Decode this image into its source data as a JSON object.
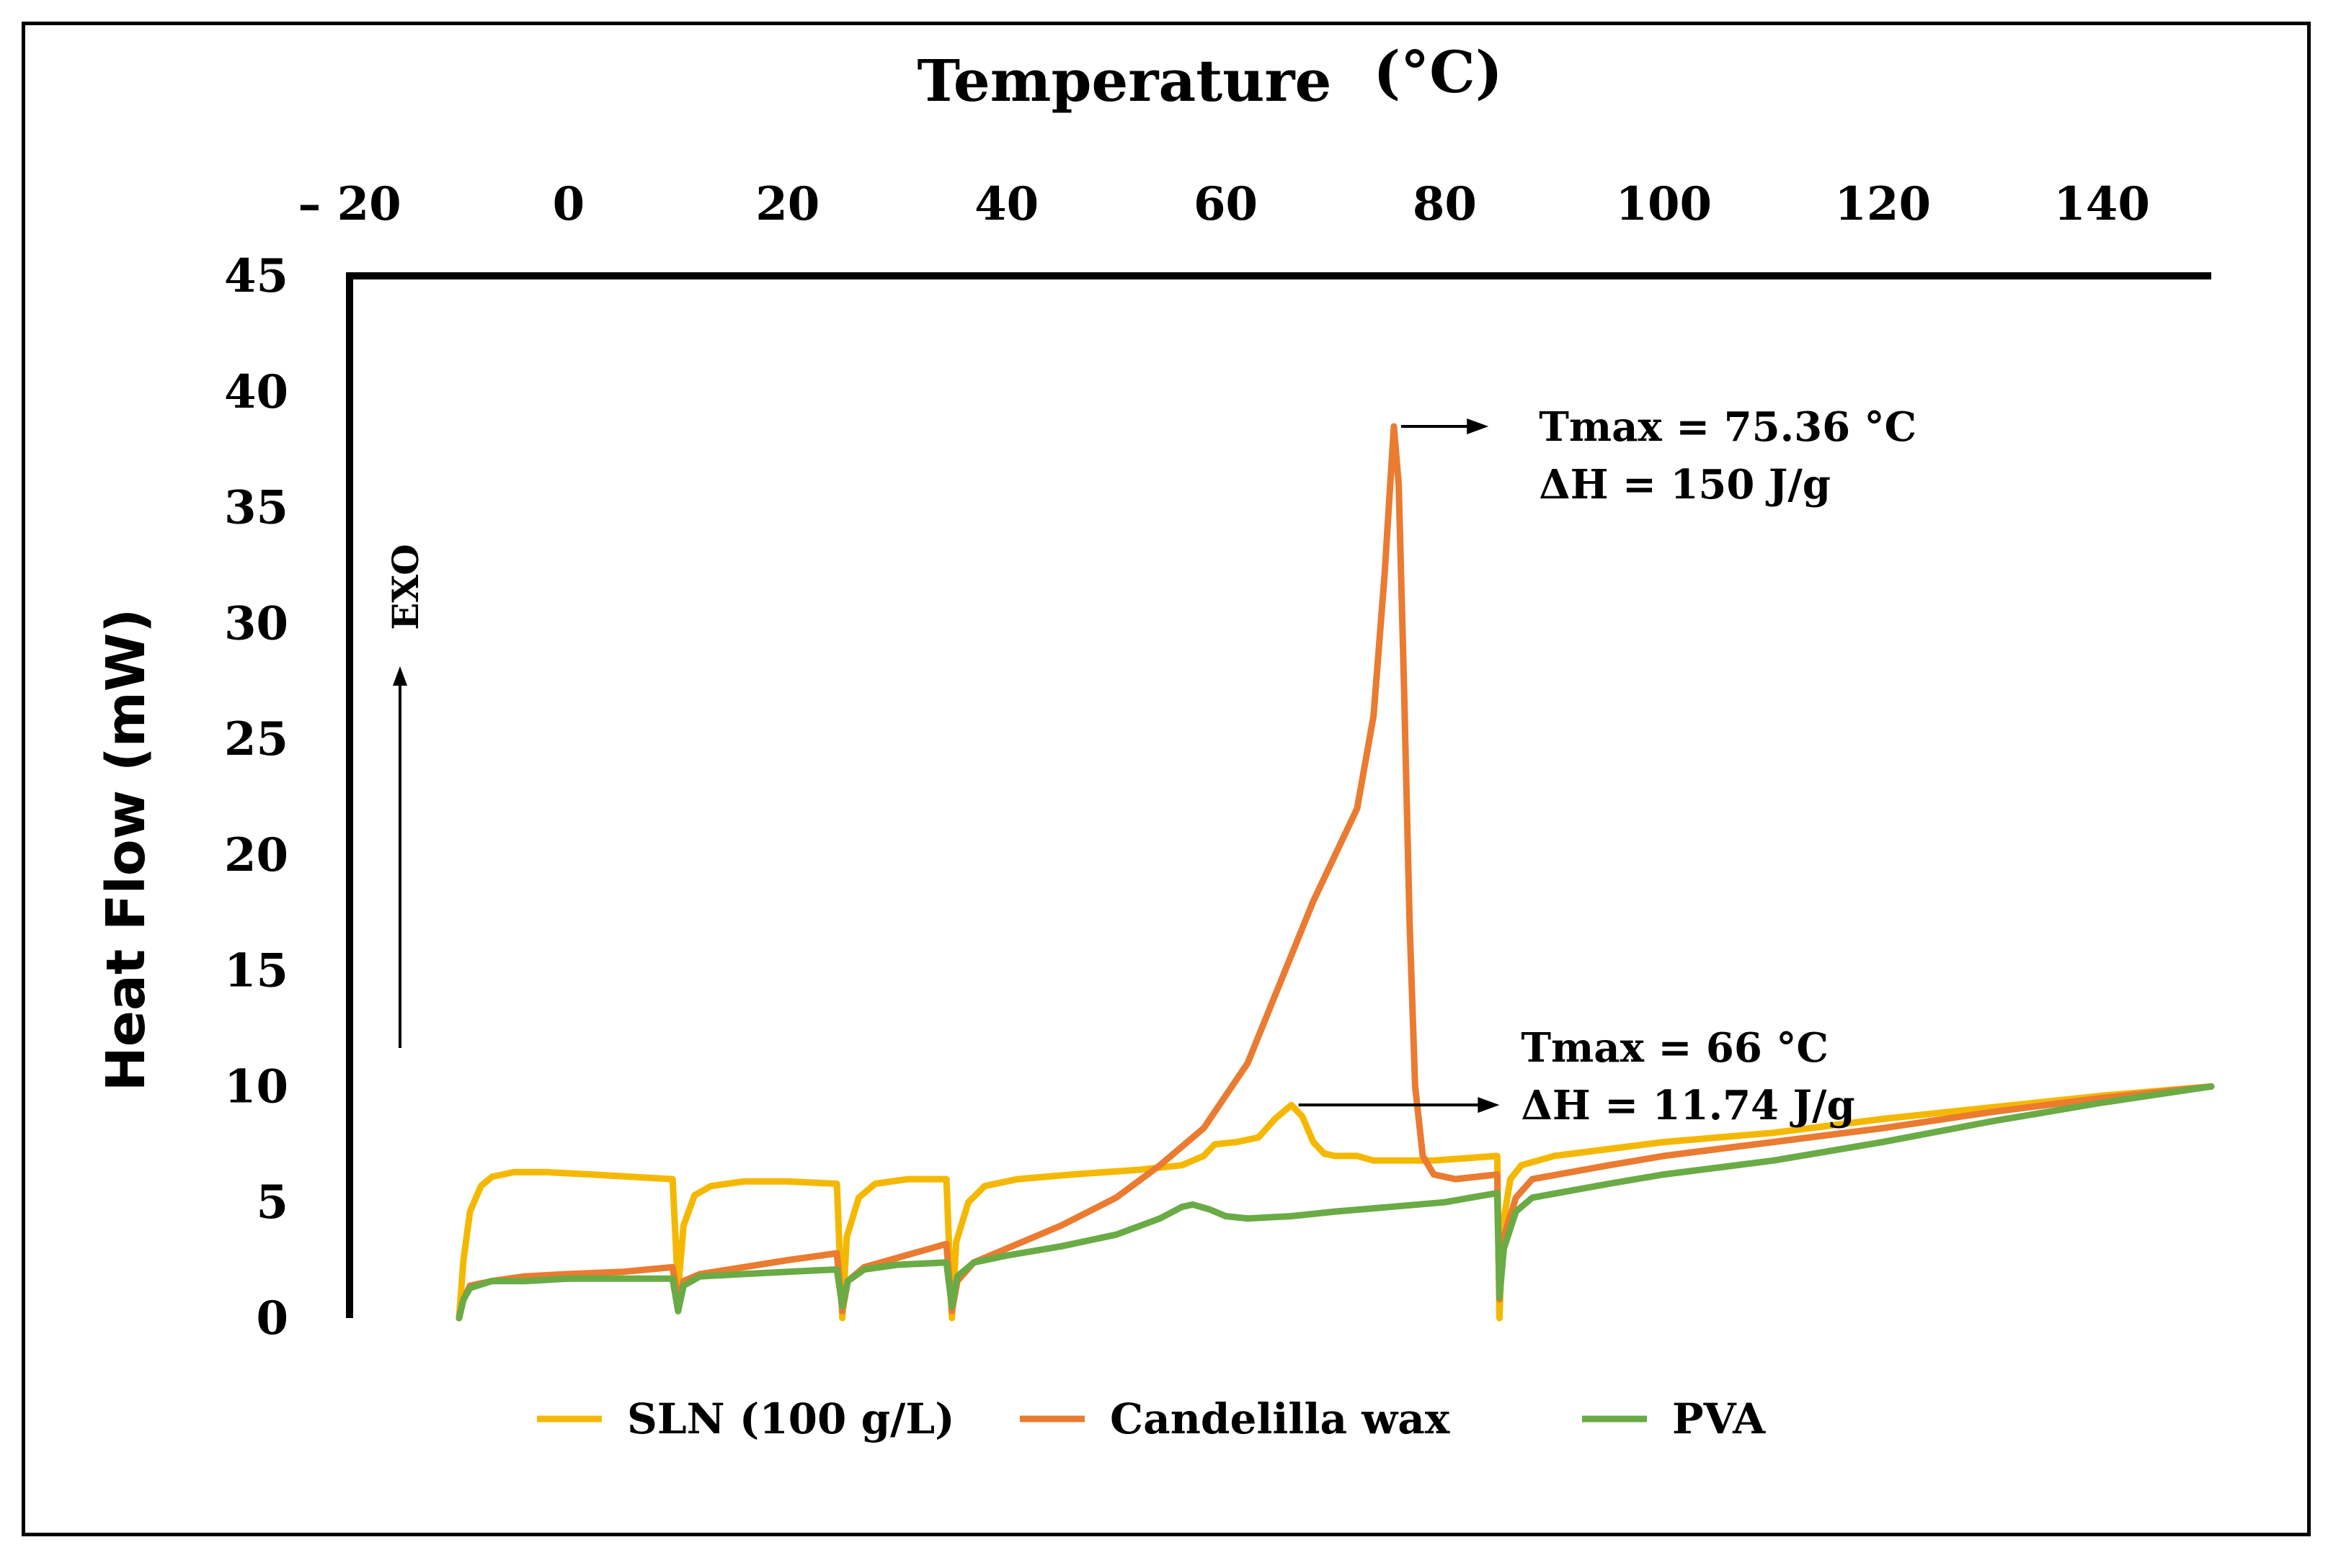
{
  "chart_data": {
    "type": "line",
    "title": "Temperature",
    "title_unit": "(°C)",
    "xlabel": "Temperature (°C)",
    "ylabel": "Heat Flow (mW)",
    "x_axis_position": "top",
    "xlim": [
      -20,
      150
    ],
    "ylim": [
      0,
      45
    ],
    "xticks": [
      -20,
      0,
      20,
      40,
      60,
      80,
      100,
      120,
      140
    ],
    "xtick_labels": [
      "– 20",
      "0",
      "20",
      "40",
      "60",
      "80",
      "100",
      "120",
      "140"
    ],
    "yticks": [
      0,
      5,
      10,
      15,
      20,
      25,
      30,
      35,
      40,
      45
    ],
    "grid": false,
    "legend_position": "bottom",
    "exo_label": "EXO",
    "series": [
      {
        "name": "SLN (100 g/L)",
        "color": "#f5b800",
        "points": [
          [
            -10,
            0
          ],
          [
            -9.6,
            2.5
          ],
          [
            -9,
            4.6
          ],
          [
            -8,
            5.7
          ],
          [
            -7,
            6.1
          ],
          [
            -5,
            6.3
          ],
          [
            -2,
            6.3
          ],
          [
            2,
            6.2
          ],
          [
            9.5,
            6.0
          ],
          [
            10,
            1.2
          ],
          [
            10.5,
            4
          ],
          [
            11.5,
            5.3
          ],
          [
            13,
            5.7
          ],
          [
            16,
            5.9
          ],
          [
            20,
            5.9
          ],
          [
            24.5,
            5.8
          ],
          [
            25,
            0
          ],
          [
            25.4,
            3.5
          ],
          [
            26.5,
            5.2
          ],
          [
            28,
            5.8
          ],
          [
            31,
            6.0
          ],
          [
            34.5,
            6.0
          ],
          [
            35,
            0
          ],
          [
            35.4,
            3.3
          ],
          [
            36.5,
            5.0
          ],
          [
            38,
            5.7
          ],
          [
            41,
            6.0
          ],
          [
            46,
            6.2
          ],
          [
            52,
            6.4
          ],
          [
            56,
            6.6
          ],
          [
            58,
            7.0
          ],
          [
            59,
            7.5
          ],
          [
            61,
            7.6
          ],
          [
            63,
            7.8
          ],
          [
            64.5,
            8.6
          ],
          [
            66,
            9.2
          ],
          [
            67,
            8.7
          ],
          [
            68,
            7.6
          ],
          [
            69,
            7.1
          ],
          [
            70,
            7.0
          ],
          [
            72,
            7.0
          ],
          [
            73.5,
            6.8
          ],
          [
            76,
            6.8
          ],
          [
            79,
            6.8
          ],
          [
            84.8,
            7.0
          ],
          [
            85,
            0
          ],
          [
            85.3,
            4
          ],
          [
            86,
            6.0
          ],
          [
            87,
            6.6
          ],
          [
            90,
            7.0
          ],
          [
            100,
            7.6
          ],
          [
            110,
            8.0
          ],
          [
            120,
            8.6
          ],
          [
            130,
            9.1
          ],
          [
            140,
            9.6
          ],
          [
            150,
            10.0
          ]
        ]
      },
      {
        "name": "Candelilla wax",
        "color": "#ea7b30",
        "points": [
          [
            -10,
            0
          ],
          [
            -9.6,
            0.8
          ],
          [
            -9,
            1.4
          ],
          [
            -7,
            1.6
          ],
          [
            -4,
            1.8
          ],
          [
            0,
            1.9
          ],
          [
            5,
            2.0
          ],
          [
            9.5,
            2.2
          ],
          [
            10,
            0.7
          ],
          [
            10.5,
            1.6
          ],
          [
            12,
            1.9
          ],
          [
            16,
            2.2
          ],
          [
            20,
            2.5
          ],
          [
            24.5,
            2.8
          ],
          [
            25,
            0.3
          ],
          [
            25.5,
            1.6
          ],
          [
            27,
            2.2
          ],
          [
            30,
            2.6
          ],
          [
            34.5,
            3.2
          ],
          [
            35,
            0.3
          ],
          [
            35.5,
            1.6
          ],
          [
            37,
            2.4
          ],
          [
            40,
            3.0
          ],
          [
            45,
            4.0
          ],
          [
            50,
            5.2
          ],
          [
            54,
            6.6
          ],
          [
            58,
            8.2
          ],
          [
            62,
            11.0
          ],
          [
            65,
            14.5
          ],
          [
            68,
            18.0
          ],
          [
            70,
            20.0
          ],
          [
            72,
            22.0
          ],
          [
            73.5,
            26.0
          ],
          [
            74.5,
            32.0
          ],
          [
            75.36,
            38.5
          ],
          [
            75.8,
            36.0
          ],
          [
            76.3,
            27.0
          ],
          [
            76.8,
            17.0
          ],
          [
            77.3,
            10.0
          ],
          [
            78,
            7.0
          ],
          [
            79,
            6.2
          ],
          [
            81,
            6.0
          ],
          [
            84.8,
            6.2
          ],
          [
            85,
            0.8
          ],
          [
            85.4,
            3.5
          ],
          [
            86.5,
            5.2
          ],
          [
            88,
            6.0
          ],
          [
            95,
            6.6
          ],
          [
            100,
            7.0
          ],
          [
            110,
            7.6
          ],
          [
            120,
            8.2
          ],
          [
            130,
            8.9
          ],
          [
            140,
            9.5
          ],
          [
            150,
            10.0
          ]
        ]
      },
      {
        "name": "PVA",
        "color": "#6aab45",
        "points": [
          [
            -10,
            0
          ],
          [
            -9.6,
            0.8
          ],
          [
            -9,
            1.3
          ],
          [
            -7,
            1.6
          ],
          [
            -4,
            1.6
          ],
          [
            0,
            1.7
          ],
          [
            5,
            1.7
          ],
          [
            9.5,
            1.7
          ],
          [
            10,
            0.3
          ],
          [
            10.5,
            1.4
          ],
          [
            12,
            1.8
          ],
          [
            16,
            1.9
          ],
          [
            20,
            2.0
          ],
          [
            24.5,
            2.1
          ],
          [
            25,
            0.5
          ],
          [
            25.5,
            1.6
          ],
          [
            27,
            2.1
          ],
          [
            30,
            2.3
          ],
          [
            34.5,
            2.4
          ],
          [
            35,
            0.5
          ],
          [
            35.5,
            1.8
          ],
          [
            37,
            2.4
          ],
          [
            40,
            2.7
          ],
          [
            45,
            3.1
          ],
          [
            50,
            3.6
          ],
          [
            54,
            4.3
          ],
          [
            56,
            4.8
          ],
          [
            57,
            4.9
          ],
          [
            58.5,
            4.7
          ],
          [
            60,
            4.4
          ],
          [
            62,
            4.3
          ],
          [
            66,
            4.4
          ],
          [
            70,
            4.6
          ],
          [
            75,
            4.8
          ],
          [
            80,
            5.0
          ],
          [
            84.8,
            5.4
          ],
          [
            85,
            0.9
          ],
          [
            85.4,
            3.0
          ],
          [
            86.5,
            4.6
          ],
          [
            88,
            5.2
          ],
          [
            95,
            5.8
          ],
          [
            100,
            6.2
          ],
          [
            110,
            6.8
          ],
          [
            120,
            7.6
          ],
          [
            130,
            8.5
          ],
          [
            140,
            9.3
          ],
          [
            150,
            10.0
          ]
        ]
      }
    ],
    "annotations": [
      {
        "line1": "Tmax = 75.36 °C",
        "line2": "ΔH = 150 J/g",
        "x": 75.36,
        "y": 38.5,
        "arrow_to_x": 84
      },
      {
        "line1": "Tmax = 66 °C",
        "line2": "ΔH = 11.74 J/g",
        "x": 66,
        "y": 9.2,
        "arrow_to_x": 85
      }
    ]
  }
}
